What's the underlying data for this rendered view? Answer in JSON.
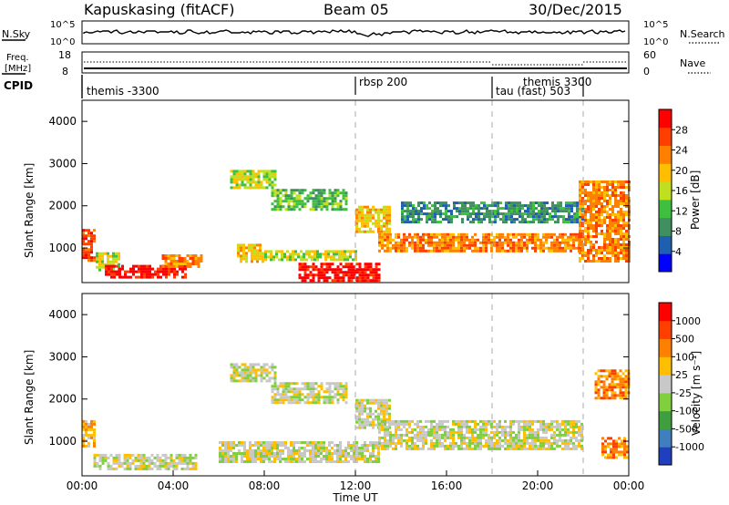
{
  "header": {
    "station": "Kapuskasing (fitACF)",
    "beam": "Beam 05",
    "date": "30/Dec/2015"
  },
  "summary_panels": {
    "nsky_label": "N.Sky",
    "nsearch_label": "N.Search",
    "freq_label": "Freq.",
    "freq_unit": "[MHz]",
    "nave_label": "Nave",
    "cpid_label": "CPID",
    "noise_ticks": [
      "10^5",
      "10^0"
    ],
    "freq_ticks": [
      "18",
      "8"
    ],
    "nave_ticks": [
      "60",
      "0"
    ]
  },
  "cpid_segments": [
    {
      "label": "themis -3300",
      "start_hour": 0.0
    },
    {
      "label": "rbsp 200",
      "start_hour": 12.0
    },
    {
      "label": "themis 3300",
      "start_hour": 18.0
    },
    {
      "label": "tau (fast) 503",
      "start_hour": 18.0
    }
  ],
  "cpid_marks_hours": [
    12.0,
    18.0,
    22.0
  ],
  "colors": {
    "power_scale": [
      "#0000ff",
      "#1f5faf",
      "#3f8f5f",
      "#3fbf3f",
      "#bfdf1f",
      "#ffbf00",
      "#ff7f00",
      "#ff3f00",
      "#ff0000"
    ],
    "velocity_scale": [
      "#1f3fbf",
      "#3f7fbf",
      "#3f9f3f",
      "#7fcf3f",
      "#c8c8c8",
      "#ffbf00",
      "#ff7f00",
      "#ff3f00",
      "#ff0000"
    ],
    "ground_scatter": "#c8c8c8"
  },
  "chart_data": [
    {
      "type": "heatmap",
      "title": "Power",
      "xlabel": "",
      "ylabel": "Slant Range [km]",
      "x_range_hours": [
        0,
        24
      ],
      "ylim": [
        180,
        4500
      ],
      "yticks": [
        1000,
        2000,
        3000,
        4000
      ],
      "colorbar_label": "Power [dB]",
      "colorbar_ticks": [
        "28",
        "24",
        "20",
        "16",
        "12",
        "8",
        "4"
      ],
      "echo_regions": [
        {
          "t0": 0.0,
          "t1": 0.6,
          "r0": 700,
          "r1": 1450,
          "level": 7
        },
        {
          "t0": 0.6,
          "t1": 1.6,
          "r0": 500,
          "r1": 900,
          "level": 4
        },
        {
          "t0": 1.0,
          "t1": 4.6,
          "r0": 300,
          "r1": 600,
          "level": 8
        },
        {
          "t0": 3.5,
          "t1": 5.2,
          "r0": 550,
          "r1": 850,
          "level": 6
        },
        {
          "t0": 6.5,
          "t1": 8.5,
          "r0": 2450,
          "r1": 2850,
          "level": 4
        },
        {
          "t0": 6.8,
          "t1": 8.0,
          "r0": 700,
          "r1": 1100,
          "level": 5
        },
        {
          "t0": 8.0,
          "t1": 12.0,
          "r0": 700,
          "r1": 950,
          "level": 4
        },
        {
          "t0": 8.3,
          "t1": 11.6,
          "r0": 1900,
          "r1": 2400,
          "level": 3
        },
        {
          "t0": 9.5,
          "t1": 13.0,
          "r0": 250,
          "r1": 650,
          "level": 8
        },
        {
          "t0": 12.0,
          "t1": 13.5,
          "r0": 1400,
          "r1": 2000,
          "level": 5
        },
        {
          "t0": 13.0,
          "t1": 22.0,
          "r0": 900,
          "r1": 1350,
          "level": 6
        },
        {
          "t0": 14.0,
          "t1": 22.0,
          "r0": 1600,
          "r1": 2100,
          "level": 2
        },
        {
          "t0": 21.8,
          "t1": 24.0,
          "r0": 700,
          "r1": 2600,
          "level": 6
        }
      ]
    },
    {
      "type": "heatmap",
      "title": "Velocity",
      "xlabel": "Time UT",
      "ylabel": "Slant Range [km]",
      "x_range_hours": [
        0,
        24
      ],
      "ylim": [
        180,
        4500
      ],
      "yticks": [
        1000,
        2000,
        3000,
        4000
      ],
      "xticks": [
        "00:00",
        "04:00",
        "08:00",
        "12:00",
        "16:00",
        "20:00",
        "00:00"
      ],
      "colorbar_label": "Velocity [m s⁻¹]",
      "colorbar_ticks": [
        "1000",
        "500",
        "100",
        "25",
        "-25",
        "-100",
        "-500",
        "-1000"
      ],
      "echo_regions": [
        {
          "t0": 0.0,
          "t1": 0.6,
          "r0": 900,
          "r1": 1500,
          "level": 5
        },
        {
          "t0": 0.5,
          "t1": 5.0,
          "r0": 350,
          "r1": 700,
          "level": 4
        },
        {
          "t0": 6.5,
          "t1": 8.5,
          "r0": 2450,
          "r1": 2850,
          "level": 4
        },
        {
          "t0": 6.0,
          "t1": 13.0,
          "r0": 500,
          "r1": 1000,
          "level": 4
        },
        {
          "t0": 8.3,
          "t1": 11.6,
          "r0": 1900,
          "r1": 2400,
          "level": 4
        },
        {
          "t0": 12.0,
          "t1": 13.5,
          "r0": 1300,
          "r1": 2000,
          "level": 4
        },
        {
          "t0": 13.0,
          "t1": 22.0,
          "r0": 800,
          "r1": 1500,
          "level": 4
        },
        {
          "t0": 22.5,
          "t1": 24.0,
          "r0": 2000,
          "r1": 2700,
          "level": 6
        },
        {
          "t0": 22.8,
          "t1": 24.0,
          "r0": 600,
          "r1": 1100,
          "level": 6
        }
      ]
    }
  ]
}
